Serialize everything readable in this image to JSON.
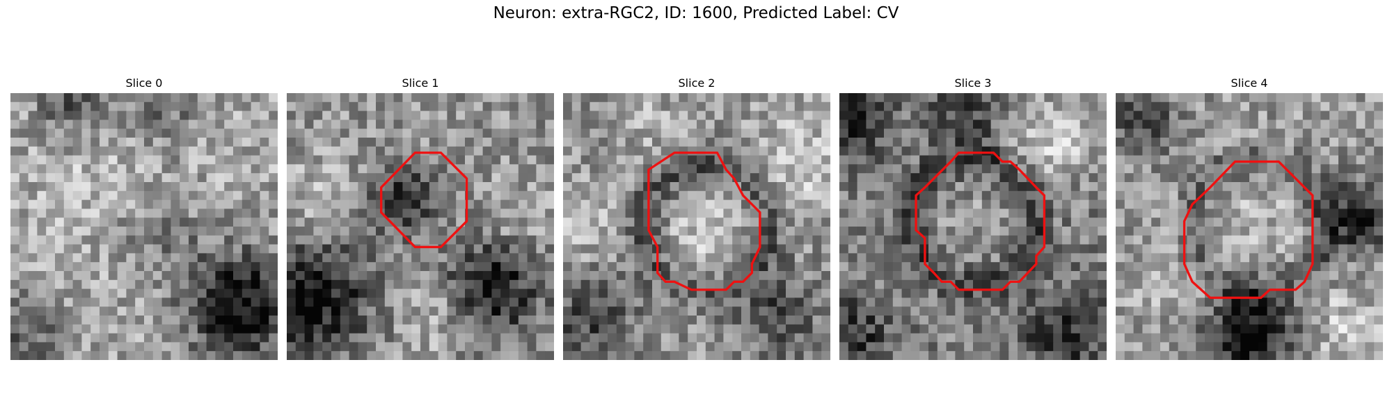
{
  "figure": {
    "title": "Neuron: extra-RGC2, ID: 1600, Predicted Label: CV",
    "outline_color": "#ee1111",
    "colormap": "gray"
  },
  "slices": [
    {
      "title": "Slice 0",
      "has_outline": false
    },
    {
      "title": "Slice 1",
      "has_outline": true
    },
    {
      "title": "Slice 2",
      "has_outline": true
    },
    {
      "title": "Slice 3",
      "has_outline": true
    },
    {
      "title": "Slice 4",
      "has_outline": true
    }
  ]
}
